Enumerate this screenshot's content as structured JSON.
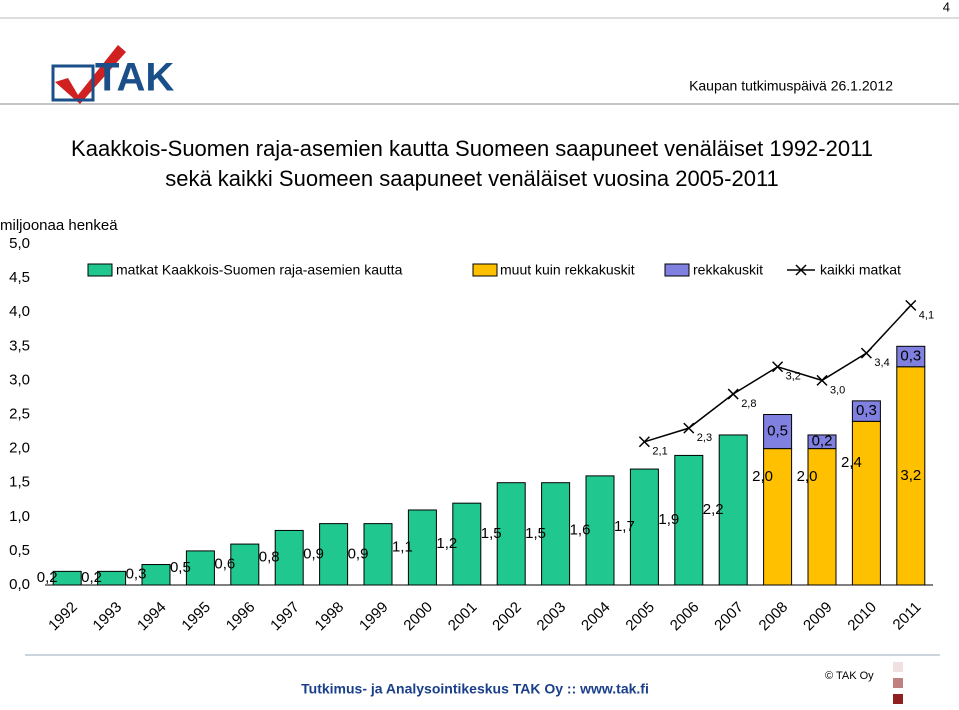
{
  "page_number": "4",
  "event": "Kaupan tutkimuspäivä 26.1.2012",
  "logo": "TAK",
  "footer": "Tutkimus- ja Analysointikeskus TAK Oy  ::  www.tak.fi",
  "copyright": "© TAK Oy",
  "chart_data": {
    "type": "bar",
    "title": [
      "Kaakkois-Suomen raja-asemien kautta Suomeen saapuneet venäläiset 1992-2011",
      "sekä kaikki Suomeen saapuneet venäläiset vuosina 2005-2011"
    ],
    "y_label": "miljoonaa henkeä",
    "categories": [
      "1992",
      "1993",
      "1994",
      "1995",
      "1996",
      "1997",
      "1998",
      "1999",
      "2000",
      "2001",
      "2002",
      "2003",
      "2004",
      "2005",
      "2006",
      "2007",
      "2008",
      "2009",
      "2010",
      "2011"
    ],
    "ylim": [
      0,
      5
    ],
    "yticks": [
      {
        "value": 0,
        "label": "0,0"
      },
      {
        "value": 0.5,
        "label": "0,5"
      },
      {
        "value": 1,
        "label": "1,0"
      },
      {
        "value": 1.5,
        "label": "1,5"
      },
      {
        "value": 2,
        "label": "2,0"
      },
      {
        "value": 2.5,
        "label": "2,5"
      },
      {
        "value": 3,
        "label": "3,0"
      },
      {
        "value": 3.5,
        "label": "3,5"
      },
      {
        "value": 4,
        "label": "4,0"
      },
      {
        "value": 4.5,
        "label": "4,5"
      },
      {
        "value": 5,
        "label": "5,0"
      }
    ],
    "series": [
      {
        "name": "matkat Kaakkois-Suomen raja-asemien kautta",
        "color": "#20c890",
        "kind": "bar",
        "values": [
          0.2,
          0.2,
          0.3,
          0.5,
          0.6,
          0.8,
          0.9,
          0.9,
          1.1,
          1.2,
          1.5,
          1.5,
          1.6,
          1.7,
          1.9,
          2.2,
          null,
          null,
          null,
          null
        ],
        "value_labels": [
          "0,2",
          "0,2",
          "0,3",
          "0,5",
          "0,6",
          "0,8",
          "0,9",
          "0,9",
          "1,1",
          "1,2",
          "1,5",
          "1,5",
          "1,6",
          "1,7",
          "1,9",
          "2,2",
          null,
          null,
          null,
          null
        ]
      },
      {
        "name": "muut kuin rekkakuskit",
        "color": "#ffc000",
        "kind": "bar",
        "values": [
          null,
          null,
          null,
          null,
          null,
          null,
          null,
          null,
          null,
          null,
          null,
          null,
          null,
          null,
          null,
          null,
          2.0,
          2.0,
          2.4,
          3.2
        ],
        "value_labels": [
          null,
          null,
          null,
          null,
          null,
          null,
          null,
          null,
          null,
          null,
          null,
          null,
          null,
          null,
          null,
          null,
          "2,0",
          "2,0",
          "2,4",
          "3,2"
        ]
      },
      {
        "name": "rekkakuskit",
        "color": "#8080e0",
        "kind": "stack",
        "values": [
          null,
          null,
          null,
          null,
          null,
          null,
          null,
          null,
          null,
          null,
          null,
          null,
          null,
          null,
          null,
          null,
          0.5,
          0.2,
          0.3,
          0.3
        ],
        "value_labels": [
          null,
          null,
          null,
          null,
          null,
          null,
          null,
          null,
          null,
          null,
          null,
          null,
          null,
          null,
          null,
          null,
          "0,5",
          "0,2",
          "0,3",
          "0,3"
        ]
      },
      {
        "name": "kaikki matkat",
        "color": "#000000",
        "kind": "line",
        "values": [
          null,
          null,
          null,
          null,
          null,
          null,
          null,
          null,
          null,
          null,
          null,
          null,
          null,
          2.1,
          2.3,
          2.8,
          3.2,
          3.0,
          3.4,
          4.1
        ],
        "value_labels": [
          null,
          null,
          null,
          null,
          null,
          null,
          null,
          null,
          null,
          null,
          null,
          null,
          null,
          "2,1",
          "2,3",
          "2,8",
          "3,2",
          "3,0",
          "3,4",
          "4,1"
        ]
      }
    ]
  }
}
